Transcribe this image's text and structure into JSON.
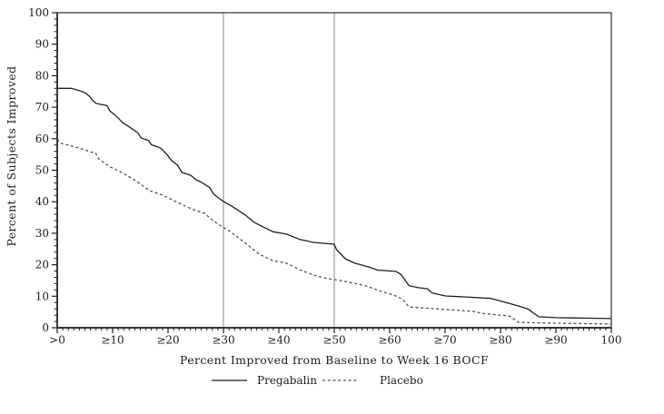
{
  "figure": {
    "background": "#ffffff"
  },
  "chart_data": {
    "type": "line",
    "title": "",
    "xlabel": "Percent Improved from Baseline to Week 16 BOCF",
    "ylabel": "Percent of Subjects Improved",
    "xlim": [
      0,
      100
    ],
    "ylim": [
      0,
      100
    ],
    "grid": false,
    "legend_position": "bottom",
    "x_tick_values": [
      0,
      10,
      20,
      30,
      40,
      50,
      60,
      70,
      80,
      90,
      100
    ],
    "x_tick_labels": [
      ">0",
      "≥10",
      "≥20",
      "≥30",
      "≥40",
      "≥50",
      "≥60",
      "≥70",
      "≥80",
      "≥90",
      "100"
    ],
    "y_tick_values": [
      0,
      10,
      20,
      30,
      40,
      50,
      60,
      70,
      80,
      90,
      100
    ],
    "x_minor_tick_step": 1,
    "y_minor_tick_step": 2,
    "reference_lines_x": [
      30,
      50
    ],
    "series": [
      {
        "name": "Pregabalin",
        "style": "solid",
        "color": "#1f1f1f",
        "points": [
          [
            0,
            76
          ],
          [
            2.5,
            76
          ],
          [
            4,
            75.3
          ],
          [
            5,
            74.6
          ],
          [
            5.8,
            73.5
          ],
          [
            6.2,
            72.5
          ],
          [
            7,
            71.2
          ],
          [
            9,
            70.5
          ],
          [
            9.5,
            68.8
          ],
          [
            10.7,
            67.1
          ],
          [
            11.8,
            65.1
          ],
          [
            12.6,
            64.2
          ],
          [
            13.7,
            62.9
          ],
          [
            14.6,
            61.8
          ],
          [
            15.1,
            60.3
          ],
          [
            16.5,
            59.4
          ],
          [
            17,
            58.1
          ],
          [
            18.7,
            57
          ],
          [
            19.8,
            55
          ],
          [
            20.6,
            53.1
          ],
          [
            21.7,
            51.6
          ],
          [
            22.5,
            49.3
          ],
          [
            24.1,
            48.4
          ],
          [
            25,
            47
          ],
          [
            25.8,
            46.4
          ],
          [
            26.6,
            45.5
          ],
          [
            27.5,
            44.5
          ],
          [
            28.2,
            42.5
          ],
          [
            29.1,
            41.2
          ],
          [
            30,
            40.1
          ],
          [
            31.5,
            38.6
          ],
          [
            34,
            35.7
          ],
          [
            35.6,
            33.4
          ],
          [
            36.5,
            32.6
          ],
          [
            38.9,
            30.5
          ],
          [
            41.4,
            29.7
          ],
          [
            43.8,
            28
          ],
          [
            46.3,
            27.1
          ],
          [
            50,
            26.5
          ],
          [
            50.4,
            24.8
          ],
          [
            52,
            21.9
          ],
          [
            53.7,
            20.5
          ],
          [
            56.2,
            19.3
          ],
          [
            57.8,
            18.3
          ],
          [
            61.1,
            17.9
          ],
          [
            62,
            17
          ],
          [
            63.5,
            13.3
          ],
          [
            65.2,
            12.7
          ],
          [
            66.8,
            12.4
          ],
          [
            67.7,
            11
          ],
          [
            70.1,
            10.1
          ],
          [
            73.4,
            9.8
          ],
          [
            78.3,
            9.3
          ],
          [
            80.8,
            8.1
          ],
          [
            83.3,
            6.9
          ],
          [
            84.9,
            6
          ],
          [
            86.9,
            3.5
          ],
          [
            90,
            3.2
          ],
          [
            100,
            2.9
          ]
        ]
      },
      {
        "name": "Placebo",
        "style": "dashed",
        "color": "#4f4f4f",
        "points": [
          [
            0,
            59.8
          ],
          [
            0.7,
            58.5
          ],
          [
            2,
            58
          ],
          [
            3,
            57.5
          ],
          [
            4,
            57
          ],
          [
            5,
            56.5
          ],
          [
            6,
            55.8
          ],
          [
            6.9,
            55.5
          ],
          [
            7.5,
            53.6
          ],
          [
            9.4,
            51.2
          ],
          [
            12,
            49
          ],
          [
            14.3,
            46.5
          ],
          [
            16.7,
            43.5
          ],
          [
            19,
            42.1
          ],
          [
            21.7,
            39.8
          ],
          [
            24.1,
            37.8
          ],
          [
            26.6,
            36.3
          ],
          [
            27.9,
            34.3
          ],
          [
            30,
            31.8
          ],
          [
            31,
            30.8
          ],
          [
            32,
            29.5
          ],
          [
            34,
            26.8
          ],
          [
            36.5,
            23.3
          ],
          [
            38.9,
            21.3
          ],
          [
            41.4,
            20.5
          ],
          [
            43.8,
            18.4
          ],
          [
            46.3,
            16.7
          ],
          [
            48.8,
            15.6
          ],
          [
            50,
            15.3
          ],
          [
            52,
            14.7
          ],
          [
            55.3,
            13.5
          ],
          [
            58.6,
            11.5
          ],
          [
            61.1,
            10.1
          ],
          [
            62.4,
            8.9
          ],
          [
            63.5,
            6.6
          ],
          [
            70.1,
            5.8
          ],
          [
            75,
            5.2
          ],
          [
            77,
            4.5
          ],
          [
            80,
            4
          ],
          [
            81.6,
            3.7
          ],
          [
            83.3,
            1.7
          ],
          [
            90,
            1.4
          ],
          [
            100,
            1.2
          ]
        ]
      }
    ],
    "colors": {
      "axis": "#1c1c1c",
      "reference_line": "#a3a3a3"
    }
  }
}
